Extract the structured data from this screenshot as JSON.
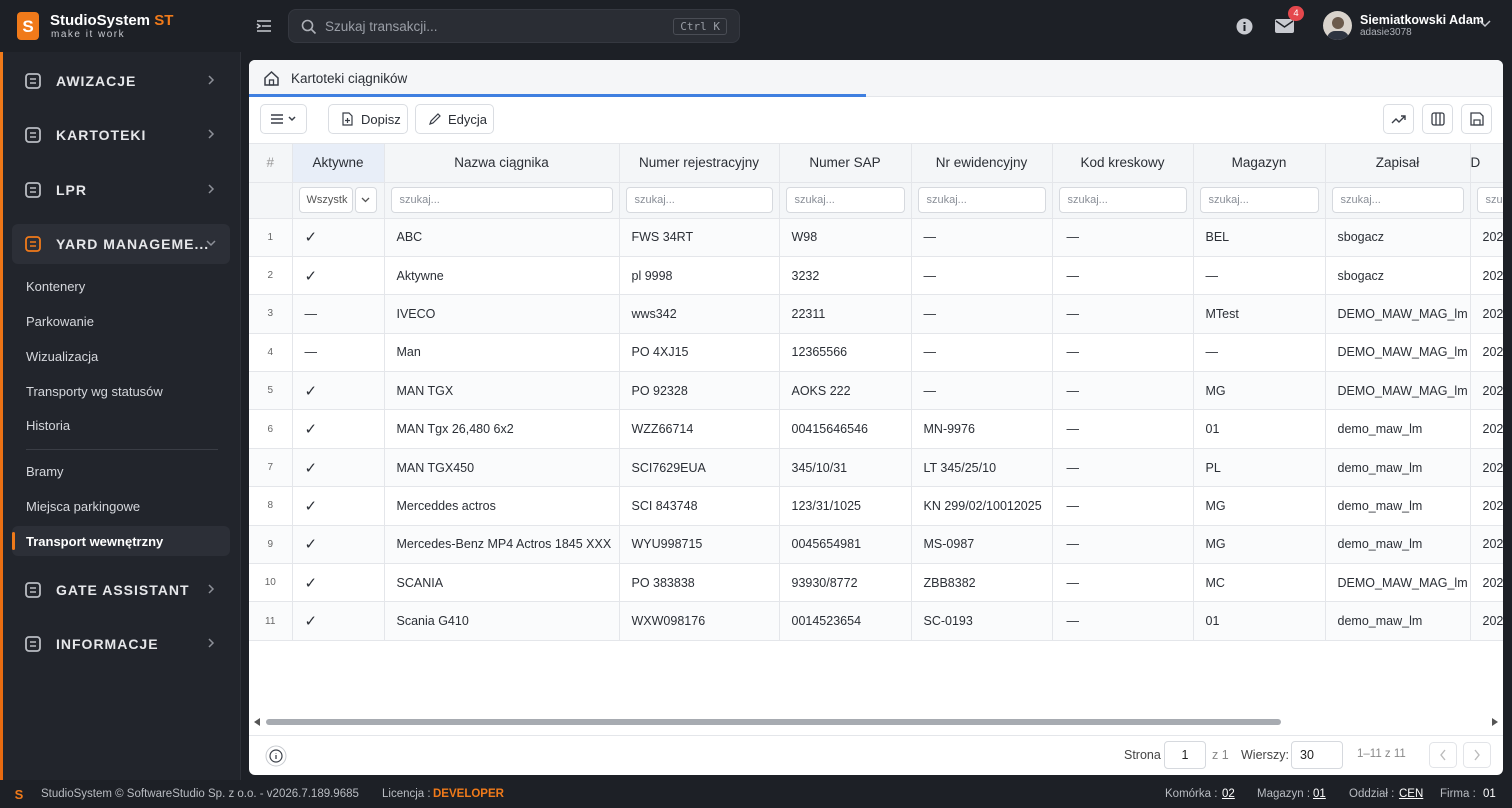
{
  "header": {
    "brand": "StudioSystem",
    "brand_suffix": "ST",
    "tagline": "make it work",
    "search_placeholder": "Szukaj transakcji...",
    "shortcut": "Ctrl K",
    "notifications": "4",
    "user_name": "Siemiatkowski Adam",
    "user_login": "adasie3078"
  },
  "sidebar": {
    "groups": [
      "AWIZACJE",
      "KARTOTEKI",
      "LPR",
      "YARD MANAGEME...",
      "GATE ASSISTANT",
      "INFORMACJE"
    ],
    "items": [
      "Kontenery",
      "Parkowanie",
      "Wizualizacja",
      "Transporty wg statusów",
      "Historia"
    ],
    "items2": [
      "Bramy",
      "Miejsca parkingowe",
      "Transport wewnętrzny"
    ]
  },
  "tab": {
    "title": "Kartoteki ciągników"
  },
  "toolbar": {
    "add": "Dopisz",
    "edit": "Edycja"
  },
  "table": {
    "columns": [
      "#",
      "Aktywne",
      "Nazwa ciągnika",
      "Numer rejestracyjny",
      "Numer SAP",
      "Nr ewidencyjny",
      "Kod kreskowy",
      "Magazyn",
      "Zapisał",
      "D"
    ],
    "filter_select": "Wszystk",
    "filter_placeholder": "szukaj...",
    "rows": [
      [
        "1",
        "✓",
        "ABC",
        "FWS 34RT",
        "W98",
        "—",
        "—",
        "BEL",
        "sbogacz",
        "202"
      ],
      [
        "2",
        "✓",
        "Aktywne",
        "pl 9998",
        "3232",
        "—",
        "—",
        "—",
        "sbogacz",
        "202"
      ],
      [
        "3",
        "—",
        "IVECO",
        "wws342",
        "22311",
        "—",
        "—",
        "MTest",
        "DEMO_MAW_MAG_lm",
        "202"
      ],
      [
        "4",
        "—",
        "Man",
        "PO 4XJ15",
        "12365566",
        "—",
        "—",
        "—",
        "DEMO_MAW_MAG_lm",
        "202"
      ],
      [
        "5",
        "✓",
        "MAN TGX",
        "PO 92328",
        "AOKS 222",
        "—",
        "—",
        "MG",
        "DEMO_MAW_MAG_lm",
        "202"
      ],
      [
        "6",
        "✓",
        "MAN Tgx 26,480 6x2",
        "WZZ66714",
        "00415646546",
        "MN-9976",
        "—",
        "01",
        "demo_maw_lm",
        "202"
      ],
      [
        "7",
        "✓",
        "MAN TGX450",
        "SCI7629EUA",
        "345/10/31",
        "LT 345/25/10",
        "—",
        "PL",
        "demo_maw_lm",
        "202"
      ],
      [
        "8",
        "✓",
        "Merceddes actros",
        "SCI 843748",
        "123/31/1025",
        "KN 299/02/10012025",
        "—",
        "MG",
        "demo_maw_lm",
        "202"
      ],
      [
        "9",
        "✓",
        "Mercedes-Benz MP4 Actros 1845 XXX",
        "WYU998715",
        "0045654981",
        "MS-0987",
        "—",
        "MG",
        "demo_maw_lm",
        "202"
      ],
      [
        "10",
        "✓",
        "SCANIA",
        "PO 383838",
        "93930/8772",
        "ZBB8382",
        "—",
        "MC",
        "DEMO_MAW_MAG_lm",
        "202"
      ],
      [
        "11",
        "✓",
        "Scania G410",
        "WXW098176",
        "0014523654",
        "SC-0193",
        "—",
        "01",
        "demo_maw_lm",
        "202"
      ]
    ]
  },
  "pagination": {
    "page_label": "Strona",
    "page": "1",
    "page_total": "z 1",
    "rows_label": "Wierszy:",
    "rows": "30",
    "range": "1–11 z 11"
  },
  "footer": {
    "copyright": "StudioSystem © SoftwareStudio Sp. z o.o. - v2026.7.189.9685",
    "license_label": "Licencja :",
    "license": "DEVELOPER",
    "cell_label": "Komórka :",
    "cell": "02",
    "warehouse_label": "Magazyn :",
    "warehouse": "01",
    "branch_label": "Oddział :",
    "branch": "CEN",
    "company_label": "Firma :",
    "company": "01"
  }
}
